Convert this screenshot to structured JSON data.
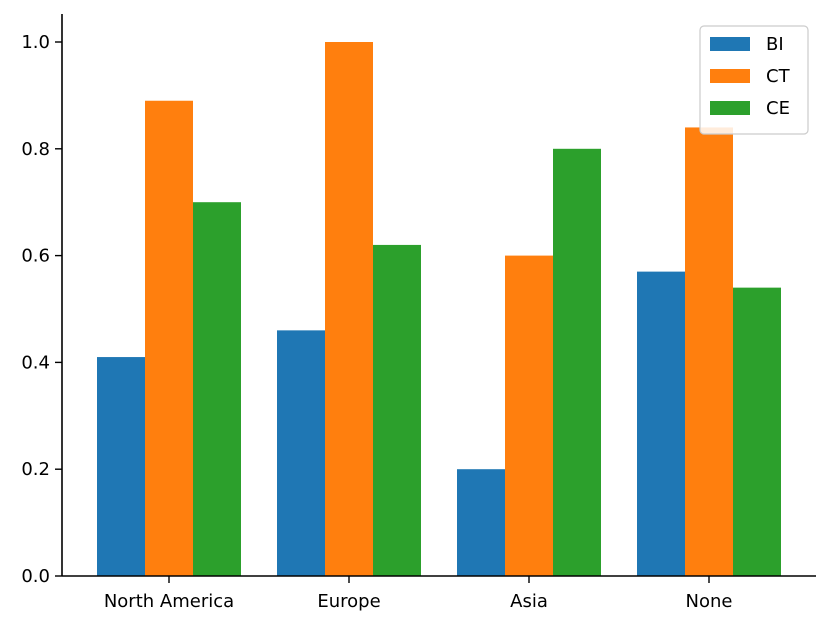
{
  "chart_data": {
    "type": "bar",
    "title": "",
    "xlabel": "",
    "ylabel": "",
    "categories": [
      "North America",
      "Europe",
      "Asia",
      "None"
    ],
    "series": [
      {
        "name": "BI",
        "color": "#1f77b4",
        "values": [
          0.41,
          0.46,
          0.2,
          0.57
        ]
      },
      {
        "name": "CT",
        "color": "#ff7f0e",
        "values": [
          0.89,
          1.0,
          0.6,
          0.84
        ]
      },
      {
        "name": "CE",
        "color": "#2ca02c",
        "values": [
          0.7,
          0.62,
          0.8,
          0.54
        ]
      }
    ],
    "ylim": [
      0,
      1.05
    ],
    "yticks": [
      "0.0",
      "0.2",
      "0.4",
      "0.6",
      "0.8",
      "1.0"
    ],
    "grid": false,
    "legend_position": "top-right"
  }
}
